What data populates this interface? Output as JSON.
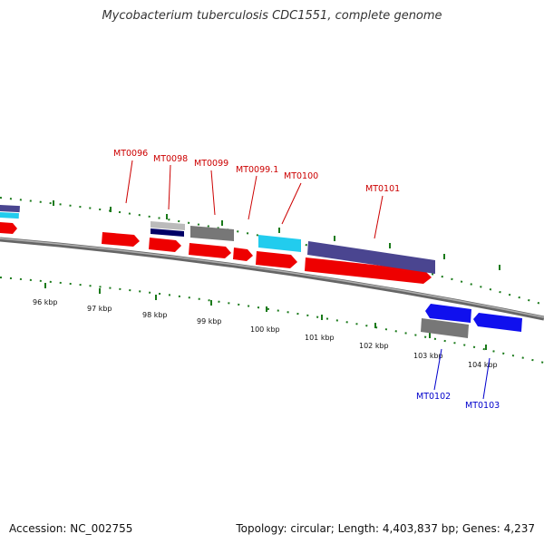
{
  "title": "Mycobacterium tuberculosis CDC1551, complete genome",
  "footer": {
    "accession": "Accession: NC_002755",
    "topology": "Topology: circular; Length: 4,403,837 bp; Genes: 4,237"
  },
  "colors": {
    "forward_label": "#cc0000",
    "reverse_label": "#0000cc",
    "tick": "#1a7a1a",
    "backbone": "#808080"
  },
  "kbp_labels": [
    "96 kbp",
    "97 kbp",
    "98 kbp",
    "99 kbp",
    "100 kbp",
    "101 kbp",
    "102 kbp",
    "103 kbp",
    "104 kbp"
  ],
  "forward_genes": [
    "MT0096",
    "MT0098",
    "MT0099",
    "MT0099.1",
    "MT0100",
    "MT0101"
  ],
  "reverse_genes": [
    "MT0102",
    "MT0103"
  ],
  "feature_colors": {
    "cds": "#ee0000",
    "gene_gray": "#777777",
    "gene_light_gray": "#bbbbbb",
    "navy": "#000066",
    "cyan": "#22ccee",
    "slate": "#4a4590",
    "blue": "#1010ee"
  }
}
